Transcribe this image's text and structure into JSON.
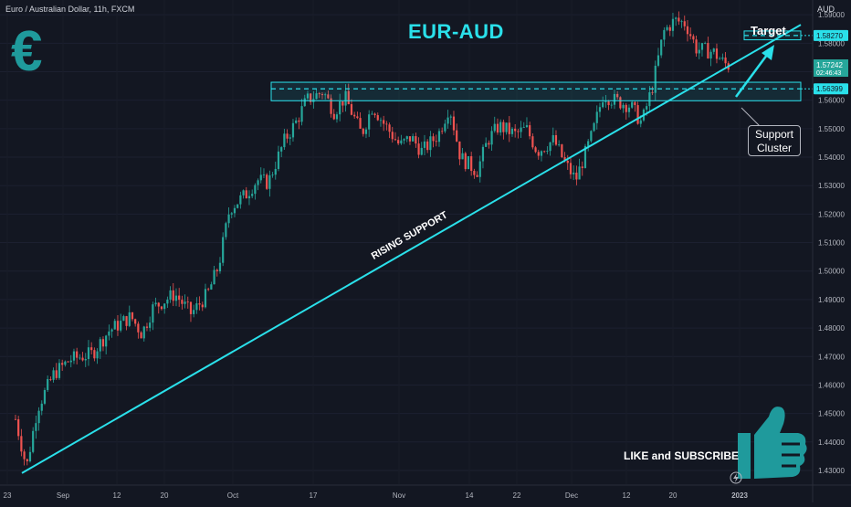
{
  "header": {
    "symbol_line": "Euro / Australian Dollar, 11h, FXCM",
    "currency": "AUD"
  },
  "overlay": {
    "title": "EUR-AUD",
    "euro_symbol": "€",
    "target_label": "Target",
    "support_cluster": [
      "Support",
      "Cluster"
    ],
    "trendline_label": "RISING SUPPORT",
    "cta": "LIKE and SUBSCRIBE"
  },
  "colors": {
    "background": "#131722",
    "up_candle": "#26a69a",
    "down_candle": "#ef5350",
    "accent": "#2ae0ea",
    "thumb": "#1f9a9c"
  },
  "icons": [
    "euro-icon",
    "thumbs-up-icon",
    "lightning-icon"
  ],
  "chart_data": {
    "type": "candlestick",
    "title": "EUR-AUD",
    "ylim": [
      1.4255,
      1.5955
    ],
    "y_ticks": [
      "1.59000",
      "1.58000",
      "1.57000",
      "1.56000",
      "1.55000",
      "1.54000",
      "1.53000",
      "1.52000",
      "1.51000",
      "1.50000",
      "1.49000",
      "1.48000",
      "1.47000",
      "1.46000",
      "1.45000",
      "1.44000",
      "1.43000"
    ],
    "x_ticks": [
      "23",
      "Sep",
      "12",
      "20",
      "Oct",
      "17",
      "Nov",
      "14",
      "22",
      "Dec",
      "12",
      "20",
      "2023"
    ],
    "price_labels": {
      "target": "1.58270",
      "last": "1.57242",
      "countdown": "02:46:43",
      "support": "1.56399"
    },
    "levels": {
      "target": 1.5827,
      "support": 1.56399,
      "support_zone": [
        1.5598,
        1.5663
      ],
      "target_zone": [
        1.5812,
        1.5843
      ]
    },
    "trendline": {
      "name": "RISING SUPPORT",
      "start": {
        "date": "2022-08-24",
        "value": 1.43
      },
      "end": {
        "date": "2022-12-31",
        "value": 1.5732
      }
    },
    "close_path": [
      {
        "date": "2022-08-22",
        "close": 1.448
      },
      {
        "date": "2022-08-24",
        "close": 1.431
      },
      {
        "date": "2022-08-26",
        "close": 1.452
      },
      {
        "date": "2022-08-29",
        "close": 1.464
      },
      {
        "date": "2022-09-01",
        "close": 1.469
      },
      {
        "date": "2022-09-05",
        "close": 1.471
      },
      {
        "date": "2022-09-08",
        "close": 1.479
      },
      {
        "date": "2022-09-12",
        "close": 1.484
      },
      {
        "date": "2022-09-14",
        "close": 1.478
      },
      {
        "date": "2022-09-16",
        "close": 1.487
      },
      {
        "date": "2022-09-20",
        "close": 1.492
      },
      {
        "date": "2022-09-23",
        "close": 1.485
      },
      {
        "date": "2022-09-26",
        "close": 1.492
      },
      {
        "date": "2022-09-28",
        "close": 1.502
      },
      {
        "date": "2022-09-30",
        "close": 1.522
      },
      {
        "date": "2022-10-03",
        "close": 1.527
      },
      {
        "date": "2022-10-05",
        "close": 1.532
      },
      {
        "date": "2022-10-07",
        "close": 1.531
      },
      {
        "date": "2022-10-10",
        "close": 1.546
      },
      {
        "date": "2022-10-12",
        "close": 1.552
      },
      {
        "date": "2022-10-14",
        "close": 1.56
      },
      {
        "date": "2022-10-17",
        "close": 1.563
      },
      {
        "date": "2022-10-19",
        "close": 1.556
      },
      {
        "date": "2022-10-21",
        "close": 1.561
      },
      {
        "date": "2022-10-24",
        "close": 1.548
      },
      {
        "date": "2022-10-26",
        "close": 1.558
      },
      {
        "date": "2022-10-28",
        "close": 1.552
      },
      {
        "date": "2022-10-31",
        "close": 1.544
      },
      {
        "date": "2022-11-02",
        "close": 1.547
      },
      {
        "date": "2022-11-04",
        "close": 1.542
      },
      {
        "date": "2022-11-07",
        "close": 1.548
      },
      {
        "date": "2022-11-09",
        "close": 1.558
      },
      {
        "date": "2022-11-11",
        "close": 1.54
      },
      {
        "date": "2022-11-14",
        "close": 1.535
      },
      {
        "date": "2022-11-16",
        "close": 1.546
      },
      {
        "date": "2022-11-18",
        "close": 1.551
      },
      {
        "date": "2022-11-21",
        "close": 1.548
      },
      {
        "date": "2022-11-23",
        "close": 1.55
      },
      {
        "date": "2022-11-25",
        "close": 1.542
      },
      {
        "date": "2022-11-28",
        "close": 1.546
      },
      {
        "date": "2022-11-30",
        "close": 1.538
      },
      {
        "date": "2022-12-02",
        "close": 1.532
      },
      {
        "date": "2022-12-05",
        "close": 1.548
      },
      {
        "date": "2022-12-07",
        "close": 1.562
      },
      {
        "date": "2022-12-09",
        "close": 1.56
      },
      {
        "date": "2022-12-12",
        "close": 1.558
      },
      {
        "date": "2022-12-14",
        "close": 1.552
      },
      {
        "date": "2022-12-16",
        "close": 1.565
      },
      {
        "date": "2022-12-18",
        "close": 1.584
      },
      {
        "date": "2022-12-20",
        "close": 1.588
      },
      {
        "date": "2022-12-22",
        "close": 1.587
      },
      {
        "date": "2022-12-24",
        "close": 1.578
      },
      {
        "date": "2022-12-27",
        "close": 1.577
      },
      {
        "date": "2022-12-29",
        "close": 1.573
      },
      {
        "date": "2022-12-30",
        "close": 1.572
      }
    ]
  }
}
